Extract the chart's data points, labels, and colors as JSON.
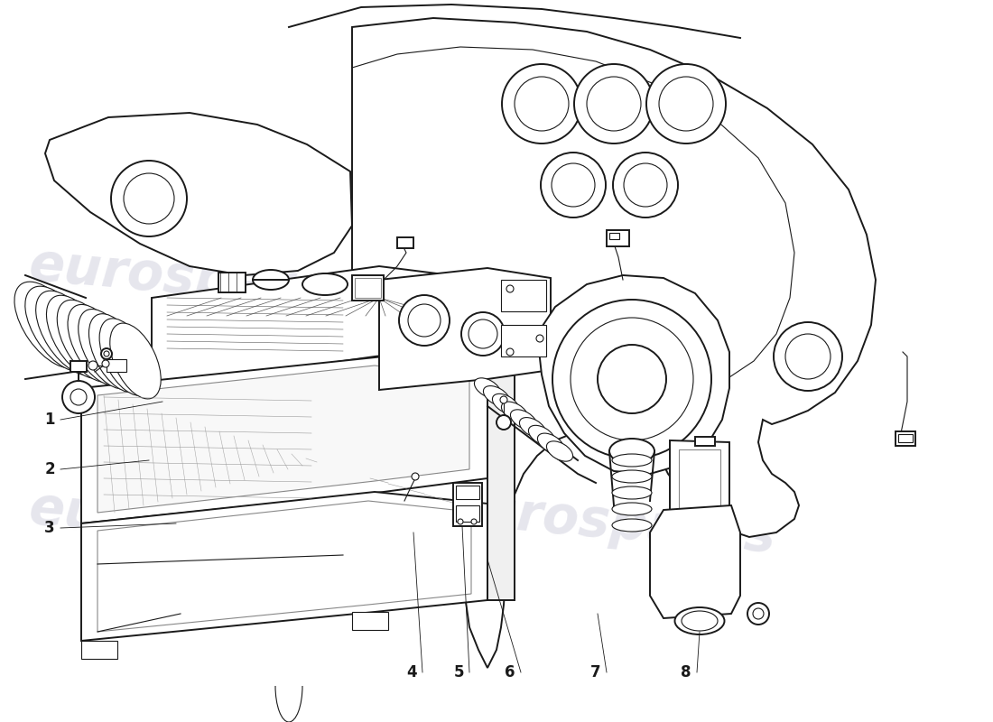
{
  "background_color": "#ffffff",
  "line_color": "#1a1a1a",
  "lw_main": 1.4,
  "lw_thin": 0.8,
  "lw_leader": 0.6,
  "watermark_text": "eurospares",
  "watermark_color": "#c8c8d8",
  "watermark_alpha": 0.45,
  "part_numbers": [
    "1",
    "2",
    "3",
    "4",
    "5",
    "6",
    "7",
    "8"
  ],
  "figsize": [
    11.0,
    8.0
  ],
  "dpi": 100
}
